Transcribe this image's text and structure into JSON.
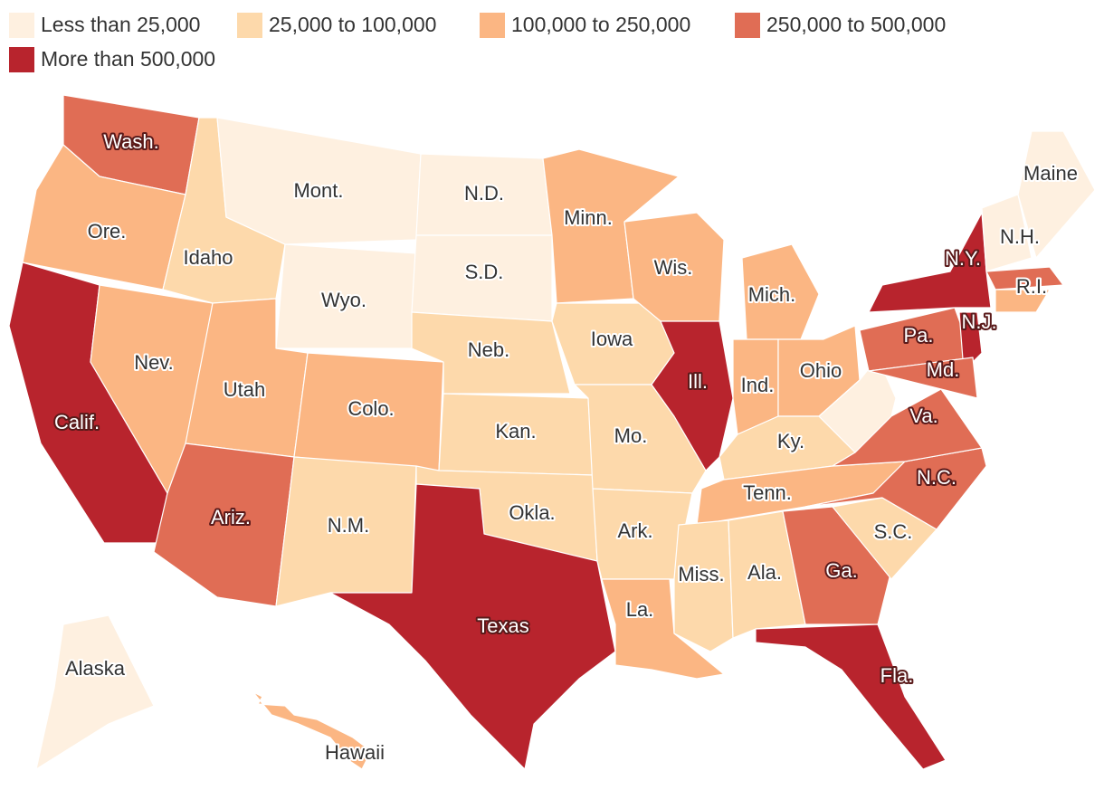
{
  "legend": [
    {
      "label": "Less than 25,000",
      "color": "#fef0e0"
    },
    {
      "label": "25,000 to 100,000",
      "color": "#fdd9ab"
    },
    {
      "label": "100,000 to 250,000",
      "color": "#fbb683"
    },
    {
      "label": "250,000 to 500,000",
      "color": "#e06d55"
    },
    {
      "label": "More than 500,000",
      "color": "#b8242d"
    }
  ],
  "states": [
    {
      "label": "Wash.",
      "color": "#e06d55"
    },
    {
      "label": "Ore.",
      "color": "#fbb683"
    },
    {
      "label": "Calif.",
      "color": "#b8242d"
    },
    {
      "label": "Nev.",
      "color": "#fbb683"
    },
    {
      "label": "Idaho",
      "color": "#fdd9ab"
    },
    {
      "label": "Mont.",
      "color": "#fef0e0"
    },
    {
      "label": "Wyo.",
      "color": "#fef0e0"
    },
    {
      "label": "Utah",
      "color": "#fbb683"
    },
    {
      "label": "Ariz.",
      "color": "#e06d55"
    },
    {
      "label": "Colo.",
      "color": "#fbb683"
    },
    {
      "label": "N.M.",
      "color": "#fdd9ab"
    },
    {
      "label": "N.D.",
      "color": "#fef0e0"
    },
    {
      "label": "S.D.",
      "color": "#fef0e0"
    },
    {
      "label": "Neb.",
      "color": "#fdd9ab"
    },
    {
      "label": "Kan.",
      "color": "#fdd9ab"
    },
    {
      "label": "Okla.",
      "color": "#fdd9ab"
    },
    {
      "label": "Texas",
      "color": "#b8242d"
    },
    {
      "label": "Minn.",
      "color": "#fbb683"
    },
    {
      "label": "Iowa",
      "color": "#fdd9ab"
    },
    {
      "label": "Mo.",
      "color": "#fdd9ab"
    },
    {
      "label": "Ark.",
      "color": "#fdd9ab"
    },
    {
      "label": "La.",
      "color": "#fbb683"
    },
    {
      "label": "Wis.",
      "color": "#fbb683"
    },
    {
      "label": "Ill.",
      "color": "#b8242d"
    },
    {
      "label": "Mich.",
      "color": "#fbb683"
    },
    {
      "label": "Ind.",
      "color": "#fbb683"
    },
    {
      "label": "Ohio",
      "color": "#fbb683"
    },
    {
      "label": "Ky.",
      "color": "#fdd9ab"
    },
    {
      "label": "Tenn.",
      "color": "#fbb683"
    },
    {
      "label": "Miss.",
      "color": "#fdd9ab"
    },
    {
      "label": "Ala.",
      "color": "#fdd9ab"
    },
    {
      "label": "Ga.",
      "color": "#e06d55"
    },
    {
      "label": "Fla.",
      "color": "#b8242d"
    },
    {
      "label": "S.C.",
      "color": "#fdd9ab"
    },
    {
      "label": "N.C.",
      "color": "#e06d55"
    },
    {
      "label": "Va.",
      "color": "#e06d55"
    },
    {
      "label": null,
      "color": "#fef0e0"
    },
    {
      "label": "Pa.",
      "color": "#e06d55"
    },
    {
      "label": "N.Y.",
      "color": "#b8242d"
    },
    {
      "label": "N.J.",
      "color": "#b8242d"
    },
    {
      "label": "Md.",
      "color": "#e06d55"
    },
    {
      "label": "N.H.",
      "color": "#fef0e0"
    },
    {
      "label": "Maine",
      "color": "#fef0e0"
    },
    {
      "label": null,
      "color": "#e06d55"
    },
    {
      "label": "R.I.",
      "color": "#fbb683"
    },
    {
      "label": "Alaska",
      "color": "#fef0e0"
    },
    {
      "label": "Hawaii",
      "color": "#fbb683"
    }
  ]
}
